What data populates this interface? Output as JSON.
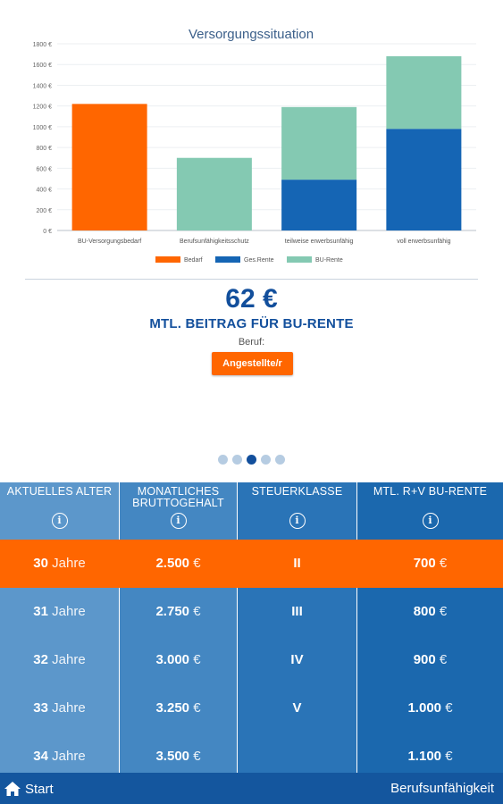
{
  "chart_data": {
    "type": "bar",
    "stacked": true,
    "title": "Versorgungssituation",
    "categories": [
      "BU-Versorgungsbedarf",
      "Berufsunfähigkeitsschutz",
      "teilweise erwerbsunfähig",
      "voll erwerbsunfähig"
    ],
    "series": [
      {
        "name": "Bedarf",
        "color": "#ff6600",
        "values": [
          1220,
          0,
          0,
          0
        ]
      },
      {
        "name": "Ges.Rente",
        "color": "#1565b4",
        "values": [
          0,
          0,
          490,
          980
        ]
      },
      {
        "name": "BU-Rente",
        "color": "#84c9b2",
        "values": [
          0,
          700,
          700,
          700
        ]
      }
    ],
    "ylim": [
      0,
      1800
    ],
    "yticks": [
      "0 €",
      "200 €",
      "400 €",
      "600 €",
      "800 €",
      "1000 €",
      "1200 €",
      "1400 €",
      "1600 €",
      "1800 €"
    ],
    "grid": true,
    "legend_position": "bottom"
  },
  "summary": {
    "price": "62 €",
    "price_label": "MTL. BEITRAG FÜR BU-RENTE",
    "beruf_label": "Beruf:",
    "beruf_button": "Angestellte/r"
  },
  "pager": {
    "count": 5,
    "active": 2
  },
  "table": {
    "columns": [
      {
        "header": "AKTUELLES ALTER",
        "header2": ""
      },
      {
        "header": "MONATLICHES",
        "header2": "BRUTTOGEHALT"
      },
      {
        "header": "STEUERKLASSE",
        "header2": ""
      },
      {
        "header": "MTL. R+V BU-RENTE",
        "header2": ""
      }
    ],
    "info_glyph": "i",
    "rows": [
      {
        "age": "30",
        "age_unit": "Jahre",
        "salary": "2.500",
        "salary_unit": "€",
        "tax": "II",
        "rente": "700",
        "rente_unit": "€",
        "selected": true
      },
      {
        "age": "31",
        "age_unit": "Jahre",
        "salary": "2.750",
        "salary_unit": "€",
        "tax": "III",
        "rente": "800",
        "rente_unit": "€",
        "selected": false
      },
      {
        "age": "32",
        "age_unit": "Jahre",
        "salary": "3.000",
        "salary_unit": "€",
        "tax": "IV",
        "rente": "900",
        "rente_unit": "€",
        "selected": false
      },
      {
        "age": "33",
        "age_unit": "Jahre",
        "salary": "3.250",
        "salary_unit": "€",
        "tax": "V",
        "rente": "1.000",
        "rente_unit": "€",
        "selected": false
      },
      {
        "age": "34",
        "age_unit": "Jahre",
        "salary": "3.500",
        "salary_unit": "€",
        "tax": "",
        "rente": "1.100",
        "rente_unit": "€",
        "selected": false
      }
    ]
  },
  "footer": {
    "start_label": "Start",
    "start_icon": "home-icon",
    "title": "Berufsunfähigkeit"
  }
}
